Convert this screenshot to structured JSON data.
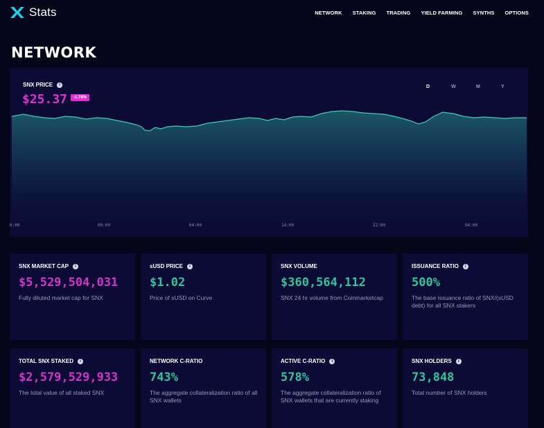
{
  "app": {
    "name": "Stats"
  },
  "nav": {
    "items": [
      "NETWORK",
      "STAKING",
      "TRADING",
      "YIELD FARMING",
      "SYNTHS",
      "OPTIONS"
    ]
  },
  "page": {
    "title": "NETWORK"
  },
  "price_chart": {
    "label": "SNX PRICE",
    "value": "$25.37",
    "change": "-1.76%",
    "periods": [
      "D",
      "W",
      "M",
      "Y"
    ],
    "active_period": "D",
    "x_ticks": [
      "0:00",
      "00:00",
      "04:00",
      "14:00",
      "22:00",
      "04:00"
    ],
    "line_color": "#3ad1b2",
    "accent": "#e22fd3"
  },
  "cards": [
    {
      "title": "SNX MARKET CAP",
      "value": "$5,529,504,031",
      "desc": "Fully diluted market cap for SNX",
      "color": "pink"
    },
    {
      "title": "sUSD PRICE",
      "value": "$1.02",
      "desc": "Price of sUSD on Curve",
      "color": "green"
    },
    {
      "title": "SNX VOLUME",
      "value": "$360,564,112",
      "desc": "SNX 24 hr volume from Coinmarketcap",
      "color": "green"
    },
    {
      "title": "ISSUANCE RATIO",
      "value": "500%",
      "desc": "The base issuance ratio of SNX/(sUSD debt) for all SNX stakers",
      "color": "green"
    },
    {
      "title": "TOTAL SNX STAKED",
      "value": "$2,579,529,933",
      "desc": "The total value of all staked SNX",
      "color": "pink"
    },
    {
      "title": "NETWORK C-RATIO",
      "value": "743%",
      "desc": "The aggregate collateralization ratio of all SNX wallets",
      "color": "green"
    },
    {
      "title": "ACTIVE C-RATIO",
      "value": "578%",
      "desc": "The aggregate collateralization ratio of SNX wallets that are currently staking",
      "color": "green"
    },
    {
      "title": "SNX HOLDERS",
      "value": "73,848",
      "desc": "Total number of SNX holders",
      "color": "green"
    }
  ]
}
